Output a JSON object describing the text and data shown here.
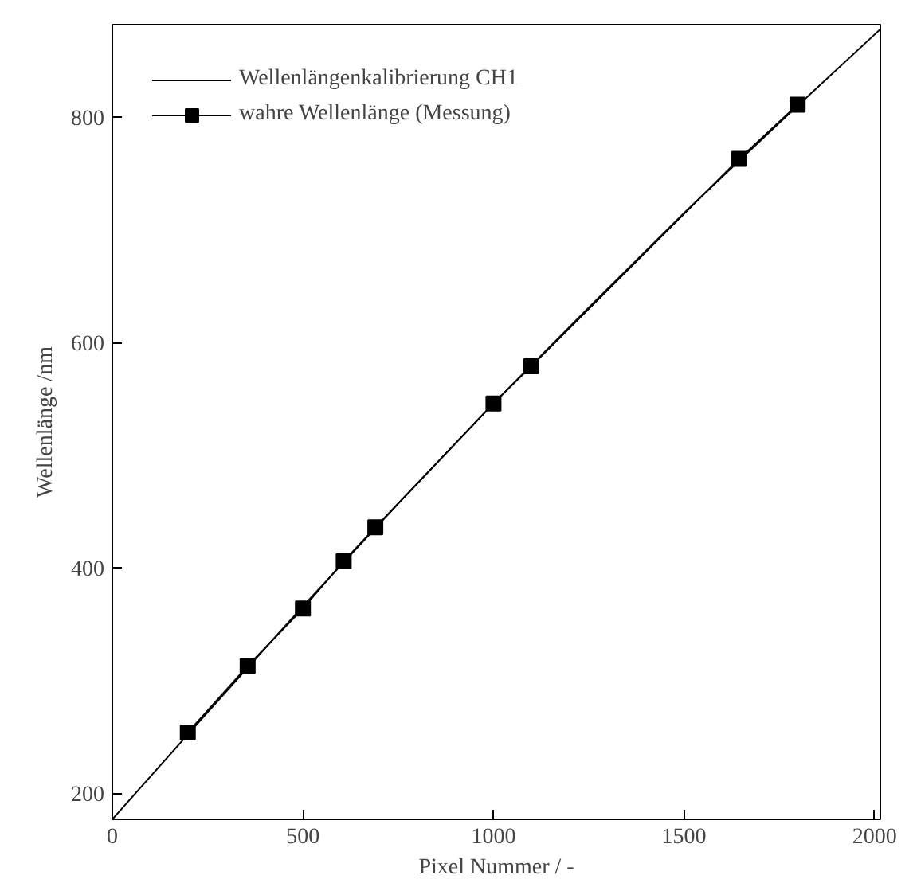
{
  "chart_data": {
    "type": "line",
    "xlabel": "Pixel Nummer / -",
    "ylabel": "Wellenlänge /nm",
    "xlim": [
      0,
      2015
    ],
    "ylim": [
      177,
      882
    ],
    "xticks": [
      0,
      500,
      1000,
      1500,
      2000
    ],
    "yticks": [
      200,
      400,
      600,
      800
    ],
    "grid": false,
    "legend": "top left",
    "series": [
      {
        "name": "Wellenlängenkalibrierung CH1",
        "color": "#000000",
        "marker": "none",
        "line_style": "solid",
        "x": [
          0,
          250,
          500,
          750,
          1000,
          1250,
          1500,
          1750,
          2015
        ],
        "values": [
          177,
          272,
          366,
          457,
          546,
          631,
          715,
          795,
          878
        ]
      },
      {
        "name": "wahre Wellenlänge (Messung)",
        "color": "#000000",
        "marker": "square",
        "line_style": "solid",
        "x": [
          198,
          355,
          500,
          607,
          690,
          1000,
          1099,
          1645,
          1798
        ],
        "values": [
          254,
          313,
          364,
          406,
          436,
          546,
          579,
          763,
          811
        ]
      }
    ]
  }
}
